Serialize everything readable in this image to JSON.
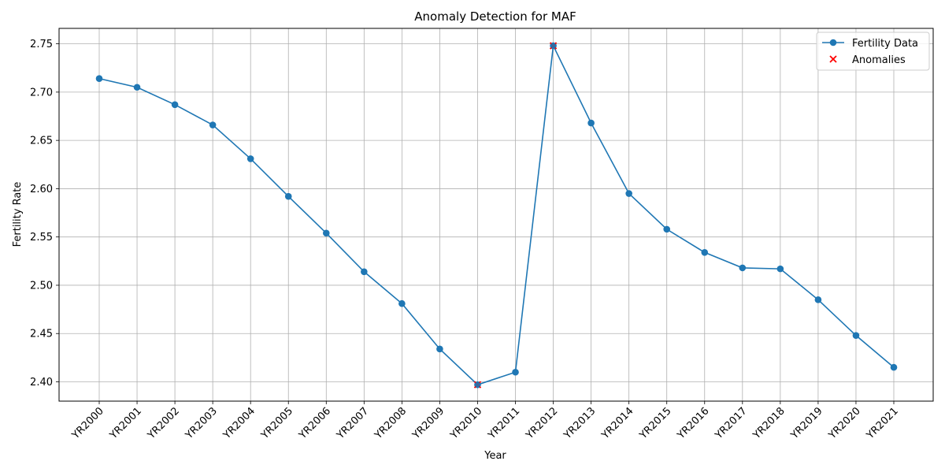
{
  "chart_data": {
    "type": "line",
    "title": "Anomaly Detection for MAF",
    "xlabel": "Year",
    "ylabel": "Fertility Rate",
    "categories": [
      "YR2000",
      "YR2001",
      "YR2002",
      "YR2003",
      "YR2004",
      "YR2005",
      "YR2006",
      "YR2007",
      "YR2008",
      "YR2009",
      "YR2010",
      "YR2011",
      "YR2012",
      "YR2013",
      "YR2014",
      "YR2015",
      "YR2016",
      "YR2017",
      "YR2018",
      "YR2019",
      "YR2020",
      "YR2021"
    ],
    "series": [
      {
        "name": "Fertility Data",
        "color": "#1f77b4",
        "marker": "circle",
        "values": [
          2.714,
          2.705,
          2.687,
          2.666,
          2.631,
          2.592,
          2.554,
          2.514,
          2.481,
          2.434,
          2.397,
          2.41,
          2.748,
          2.668,
          2.595,
          2.558,
          2.534,
          2.518,
          2.517,
          2.485,
          2.448,
          2.415
        ]
      },
      {
        "name": "Anomalies",
        "color": "#ff0000",
        "marker": "x",
        "indices": [
          10,
          12
        ]
      }
    ],
    "ylim": [
      2.38,
      2.766
    ],
    "yticks": [
      2.4,
      2.45,
      2.5,
      2.55,
      2.6,
      2.65,
      2.7,
      2.75
    ],
    "yticklabels": [
      "2.40",
      "2.45",
      "2.50",
      "2.55",
      "2.60",
      "2.65",
      "2.70",
      "2.75"
    ],
    "grid": true,
    "legend_position": "top-right"
  }
}
